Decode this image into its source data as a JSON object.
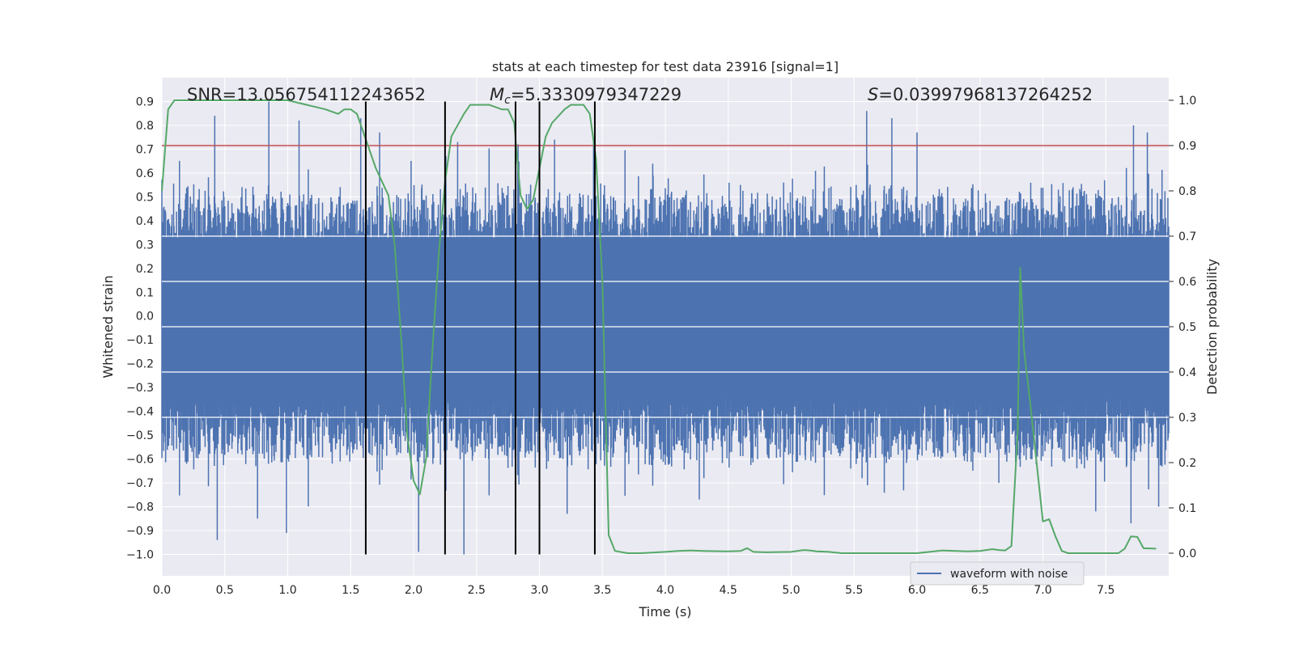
{
  "chart_data": {
    "type": "line",
    "title": "stats at each timestep for test data 23916 [signal=1]",
    "xlabel": "Time (s)",
    "ylabel": "Whitened strain",
    "ylabel_right": "Detection probability",
    "xlim": [
      0.0,
      8.0
    ],
    "ylim": [
      -1.09,
      1.0
    ],
    "ylim_right": [
      -0.05,
      1.05
    ],
    "x_ticks": [
      "0.0",
      "0.5",
      "1.0",
      "1.5",
      "2.0",
      "2.5",
      "3.0",
      "3.5",
      "4.0",
      "4.5",
      "5.0",
      "5.5",
      "6.0",
      "6.5",
      "7.0",
      "7.5"
    ],
    "y_ticks": [
      "0.9",
      "0.8",
      "0.7",
      "0.6",
      "0.5",
      "0.4",
      "0.3",
      "0.2",
      "0.1",
      "0.0",
      "-0.1",
      "-0.2",
      "-0.3",
      "-0.4",
      "-0.5",
      "-0.6",
      "-0.7",
      "-0.8",
      "-0.9",
      "-1.0"
    ],
    "y_ticks_right": [
      "1.0",
      "0.9",
      "0.8",
      "0.7",
      "0.6",
      "0.5",
      "0.4",
      "0.3",
      "0.2",
      "0.1",
      "0.0"
    ],
    "annotations": {
      "snr": "SNR=13.056754112243652",
      "mc_symbol": "M",
      "mc_sub": "c",
      "mc_value": "=5.3330979347229",
      "s_symbol": "S",
      "s_value": "=0.03997968137264252"
    },
    "threshold_right": 0.9,
    "vertical_lines_x": [
      1.62,
      2.25,
      2.81,
      3.0,
      3.44
    ],
    "legend": {
      "label": "waveform with noise",
      "location": "lower-right"
    },
    "waveform": {
      "name": "waveform with noise",
      "duration": 8.0,
      "core_amplitude": 0.33,
      "spikes": [
        {
          "x": 0.42,
          "y": 0.84
        },
        {
          "x": 0.85,
          "y": 0.9
        },
        {
          "x": 1.09,
          "y": 0.82
        },
        {
          "x": 1.58,
          "y": 0.83
        },
        {
          "x": 1.73,
          "y": 0.77
        },
        {
          "x": 2.35,
          "y": 0.73
        },
        {
          "x": 2.83,
          "y": 0.72
        },
        {
          "x": 3.12,
          "y": 0.74
        },
        {
          "x": 3.43,
          "y": 0.73
        },
        {
          "x": 5.6,
          "y": 0.86
        },
        {
          "x": 5.8,
          "y": 0.83
        },
        {
          "x": 6.0,
          "y": 0.77
        },
        {
          "x": 7.72,
          "y": 0.8
        },
        {
          "x": 7.83,
          "y": 0.77
        },
        {
          "x": 0.44,
          "y": -0.94
        },
        {
          "x": 0.76,
          "y": -0.85
        },
        {
          "x": 0.99,
          "y": -0.91
        },
        {
          "x": 2.04,
          "y": -0.99
        },
        {
          "x": 2.4,
          "y": -1.0
        },
        {
          "x": 3.22,
          "y": -0.83
        },
        {
          "x": 4.27,
          "y": -0.77
        },
        {
          "x": 6.65,
          "y": -0.7
        },
        {
          "x": 7.42,
          "y": -0.82
        },
        {
          "x": 7.7,
          "y": -0.87
        },
        {
          "x": 7.92,
          "y": -0.8
        }
      ]
    },
    "detection_probability": {
      "name": "detection probability",
      "color": "#55a868",
      "x": [
        0.0,
        0.05,
        0.1,
        0.2,
        0.4,
        0.6,
        0.8,
        1.0,
        1.15,
        1.3,
        1.4,
        1.45,
        1.5,
        1.55,
        1.6,
        1.7,
        1.8,
        1.85,
        1.9,
        1.95,
        2.0,
        2.05,
        2.1,
        2.15,
        2.2,
        2.25,
        2.3,
        2.4,
        2.45,
        2.5,
        2.6,
        2.7,
        2.75,
        2.8,
        2.82,
        2.85,
        2.9,
        2.95,
        3.0,
        3.05,
        3.1,
        3.2,
        3.25,
        3.3,
        3.35,
        3.4,
        3.45,
        3.5,
        3.55,
        3.6,
        3.7,
        3.8,
        4.0,
        4.1,
        4.2,
        4.3,
        4.5,
        4.6,
        4.65,
        4.7,
        4.8,
        5.0,
        5.1,
        5.15,
        5.2,
        5.3,
        5.4,
        5.5,
        5.7,
        6.0,
        6.1,
        6.2,
        6.4,
        6.5,
        6.6,
        6.65,
        6.7,
        6.75,
        6.8,
        6.82,
        6.85,
        6.9,
        6.95,
        7.0,
        7.05,
        7.1,
        7.15,
        7.2,
        7.4,
        7.6,
        7.65,
        7.7,
        7.75,
        7.8,
        7.9
      ],
      "y": [
        0.8,
        0.98,
        1.0,
        1.0,
        1.0,
        1.0,
        1.0,
        1.0,
        0.99,
        0.98,
        0.97,
        0.98,
        0.98,
        0.97,
        0.93,
        0.85,
        0.79,
        0.68,
        0.48,
        0.26,
        0.16,
        0.13,
        0.21,
        0.45,
        0.66,
        0.82,
        0.92,
        0.97,
        0.99,
        0.99,
        0.99,
        0.98,
        0.98,
        0.95,
        0.88,
        0.79,
        0.76,
        0.78,
        0.85,
        0.92,
        0.95,
        0.98,
        0.99,
        0.99,
        0.99,
        0.97,
        0.87,
        0.6,
        0.04,
        0.005,
        0.0,
        0.0,
        0.003,
        0.005,
        0.006,
        0.005,
        0.004,
        0.005,
        0.011,
        0.003,
        0.002,
        0.003,
        0.007,
        0.006,
        0.004,
        0.003,
        0.0,
        0.0,
        0.0,
        0.0,
        0.003,
        0.006,
        0.004,
        0.005,
        0.009,
        0.007,
        0.006,
        0.016,
        0.27,
        0.63,
        0.45,
        0.33,
        0.2,
        0.07,
        0.075,
        0.037,
        0.005,
        0.0,
        0.0,
        0.0,
        0.01,
        0.037,
        0.036,
        0.011,
        0.01
      ]
    }
  }
}
